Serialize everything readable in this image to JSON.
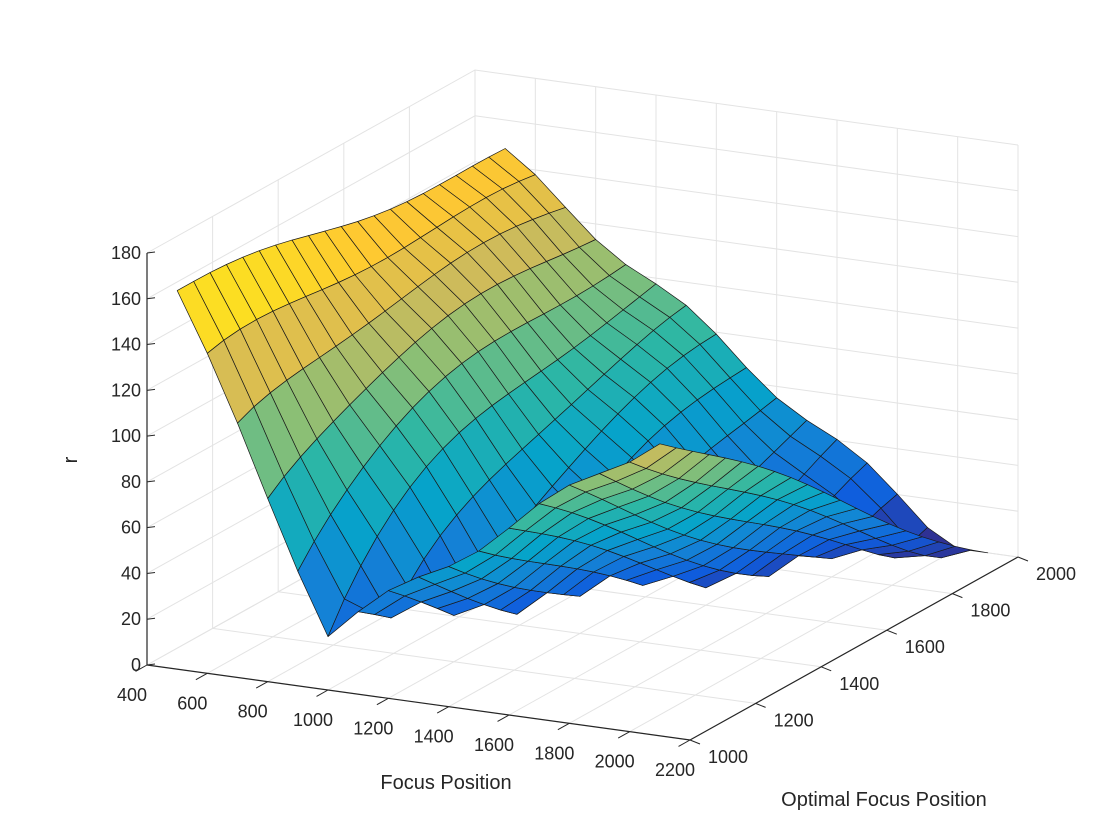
{
  "chart_data": {
    "type": "surface",
    "title": "",
    "xlabel": "Focus Position",
    "ylabel": "Optimal Focus Position",
    "zlabel": "r",
    "xlim": [
      400,
      2200
    ],
    "ylim": [
      1000,
      2000
    ],
    "zlim": [
      0,
      180
    ],
    "x_ticks": [
      400,
      600,
      800,
      1000,
      1200,
      1400,
      1600,
      1800,
      2000,
      2200
    ],
    "y_ticks": [
      1000,
      1200,
      1400,
      1600,
      1800,
      2000
    ],
    "z_ticks": [
      0,
      20,
      40,
      60,
      80,
      100,
      120,
      140,
      160,
      180
    ],
    "grid": true,
    "colormap": "parula",
    "colormap_stops": [
      "#352a87",
      "#0f5cdd",
      "#1481d6",
      "#06a4ca",
      "#2eb7a4",
      "#87bf77",
      "#d1bb59",
      "#fec832",
      "#f9fb0e"
    ],
    "surface": {
      "x_range": [
        500,
        2100
      ],
      "y_range": [
        1000,
        2000
      ],
      "x_count": 17,
      "y_count": 21,
      "z_at_min_focus_x": [
        165,
        145
      ],
      "z_at_max_focus_x": [
        130,
        0
      ],
      "z_floor_near_optimum": [
        25,
        0
      ]
    }
  }
}
